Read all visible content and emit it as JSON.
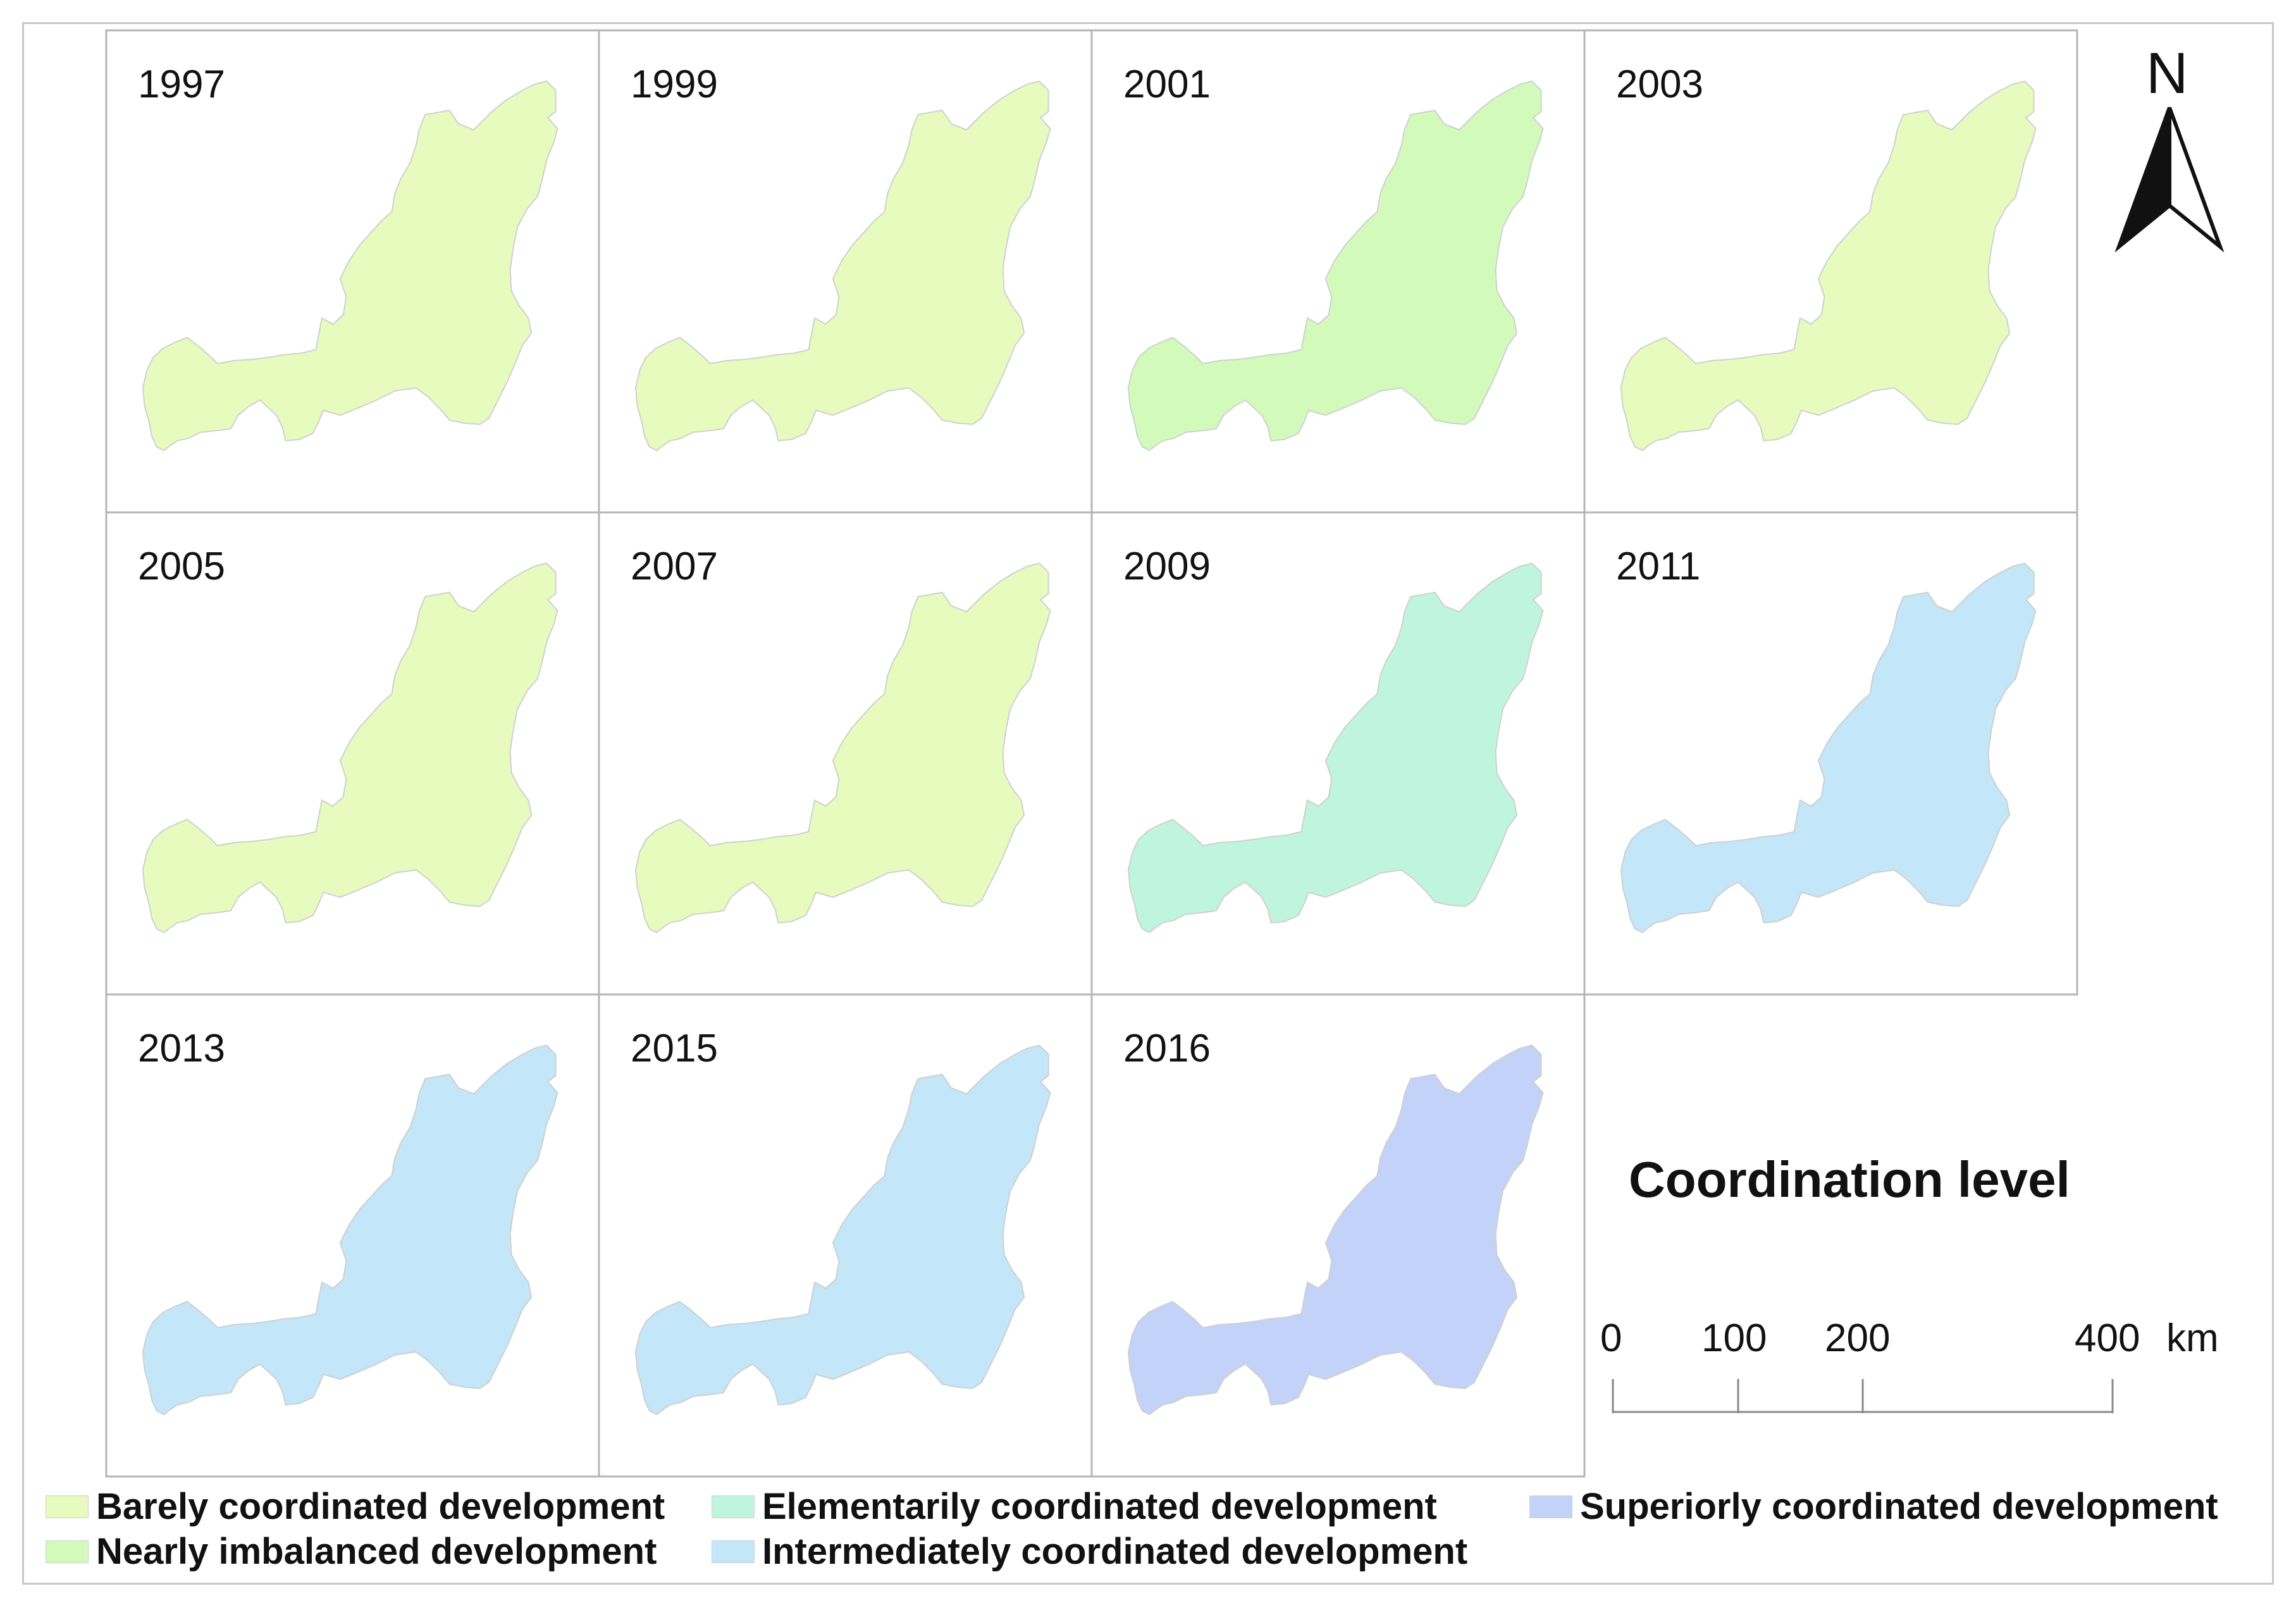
{
  "panels": [
    {
      "year": "1997",
      "level": "barely"
    },
    {
      "year": "1999",
      "level": "barely"
    },
    {
      "year": "2001",
      "level": "nearly"
    },
    {
      "year": "2003",
      "level": "barely"
    },
    {
      "year": "2005",
      "level": "barely"
    },
    {
      "year": "2007",
      "level": "barely"
    },
    {
      "year": "2009",
      "level": "elementarily"
    },
    {
      "year": "2011",
      "level": "intermediately"
    },
    {
      "year": "2013",
      "level": "intermediately"
    },
    {
      "year": "2015",
      "level": "intermediately"
    },
    {
      "year": "2016",
      "level": "superiorly"
    }
  ],
  "colors": {
    "barely": "#e6fbbd",
    "nearly": "#d2fbbb",
    "elementarily": "#bff5df",
    "intermediately": "#c3e6f8",
    "superiorly": "#c3d2f8"
  },
  "north_label": "N",
  "legend": {
    "title": "Coordination level",
    "items": [
      {
        "key": "barely",
        "label": "Barely coordinated development"
      },
      {
        "key": "elementarily",
        "label": "Elementarily coordinated development"
      },
      {
        "key": "superiorly",
        "label": "Superiorly coordinated development"
      },
      {
        "key": "nearly",
        "label": "Nearly imbalanced development"
      },
      {
        "key": "intermediately",
        "label": "Intermediately coordinated development"
      }
    ]
  },
  "scale": {
    "ticks": [
      "0",
      "100",
      "200",
      "400"
    ],
    "unit": "km"
  }
}
